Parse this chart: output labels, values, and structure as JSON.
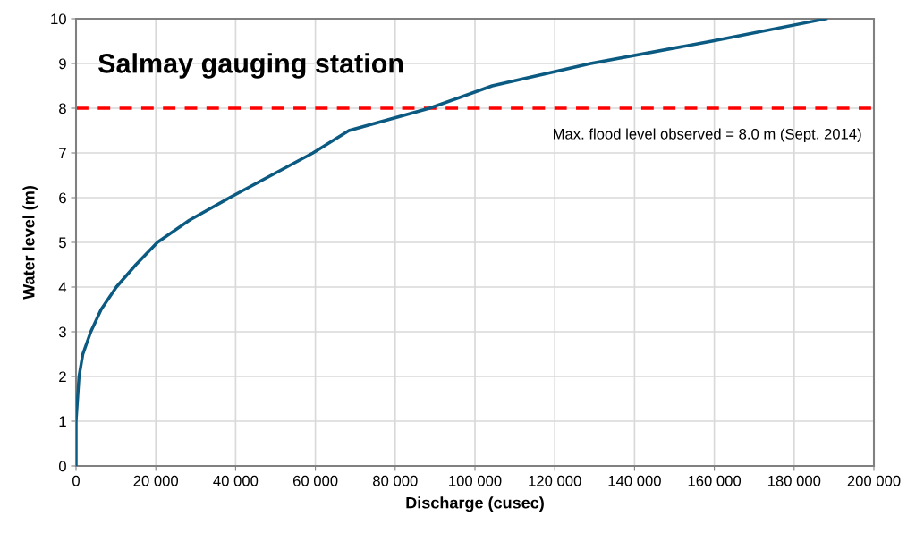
{
  "chart_data": {
    "type": "line",
    "title": "Salmay gauging station",
    "xlabel": "Discharge (cusec)",
    "ylabel": "Water level (m)",
    "x": [
      0,
      0,
      750,
      1700,
      3700,
      6300,
      10100,
      15000,
      20400,
      28500,
      38500,
      59400,
      68400,
      88600,
      104300,
      129000,
      159400,
      188000
    ],
    "series": [
      {
        "color": "#0b5a82",
        "values": [
          0,
          1,
          2,
          2.5,
          3,
          3.5,
          4,
          4.5,
          5,
          5.5,
          6,
          7,
          7.5,
          8,
          8.5,
          9,
          9.5,
          10
        ]
      }
    ],
    "xlim": [
      0,
      200000
    ],
    "ylim": [
      0,
      10
    ],
    "xticks": [
      0,
      {
        "value": 20000,
        "label": "20 000"
      },
      {
        "value": 40000,
        "label": "40 000"
      },
      {
        "value": 60000,
        "label": "60 000"
      },
      {
        "value": 80000,
        "label": "80 000"
      },
      {
        "value": 100000,
        "label": "100 000"
      },
      {
        "value": 120000,
        "label": "120 000"
      },
      {
        "value": 140000,
        "label": "140 000"
      },
      {
        "value": 160000,
        "label": "160 000"
      },
      {
        "value": 180000,
        "label": "180 000"
      },
      {
        "value": 200000,
        "label": "200 000"
      }
    ],
    "yticks": [
      0,
      1,
      2,
      3,
      4,
      5,
      6,
      7,
      8,
      9,
      10
    ],
    "ref_lines": [
      {
        "axis": "y",
        "value": 8,
        "label": "Max. flood level observed = 8.0 m (Sept. 2014)",
        "color": "#ff0000",
        "line_style": "dashed"
      }
    ],
    "grid": true,
    "marker": "none",
    "line_style": "solid"
  }
}
